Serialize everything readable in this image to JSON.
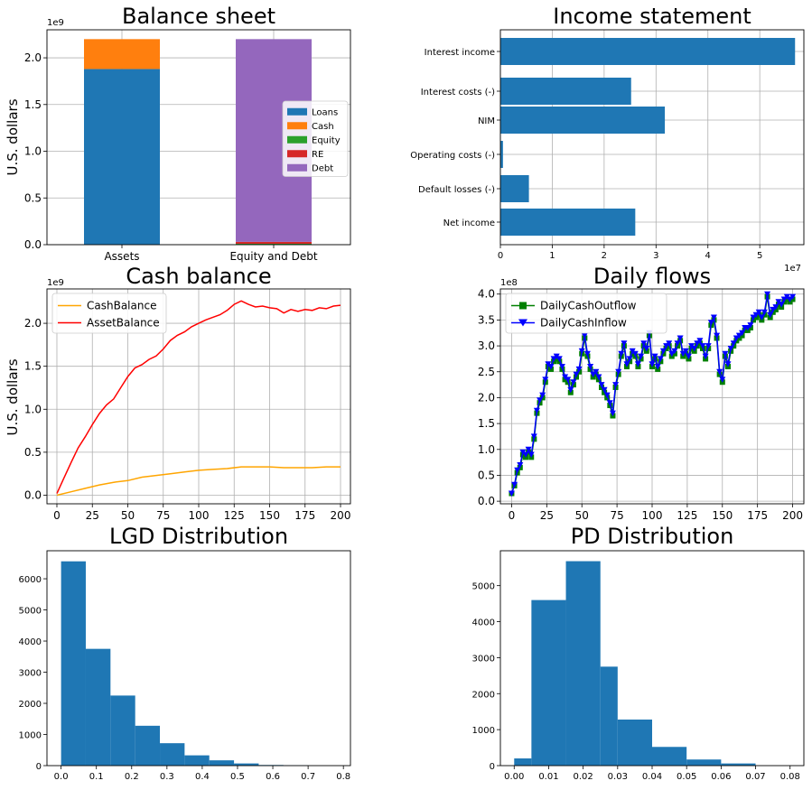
{
  "colors": {
    "blue": "#1f77b4",
    "orange": "#ff7f0e",
    "green": "#2ca02c",
    "red": "#d62728",
    "purple": "#9467bd",
    "cash_line": "#ffa500",
    "asset_line": "#ff0000",
    "outflow": "#008000",
    "inflow": "#0000ff"
  },
  "chart_data": [
    {
      "id": "balance",
      "type": "bar",
      "title": "Balance sheet",
      "ylabel": "U.S. dollars",
      "offset_text": "1e9",
      "ylim": [
        0,
        2.3
      ],
      "yticks": [
        "0.0",
        "0.5",
        "1.0",
        "1.5",
        "2.0"
      ],
      "categories": [
        "Assets",
        "Equity and Debt"
      ],
      "series": [
        {
          "name": "Loans",
          "color": "#1f77b4",
          "values": [
            1.88,
            0
          ]
        },
        {
          "name": "Cash",
          "color": "#ff7f0e",
          "values": [
            0.32,
            0
          ]
        },
        {
          "name": "Equity",
          "color": "#2ca02c",
          "values": [
            0,
            0.01
          ]
        },
        {
          "name": "RE",
          "color": "#d62728",
          "values": [
            0,
            0.02
          ]
        },
        {
          "name": "Debt",
          "color": "#9467bd",
          "values": [
            0,
            2.17
          ]
        }
      ],
      "legend": "center-right",
      "grid": true
    },
    {
      "id": "income",
      "type": "bar",
      "orientation": "horizontal",
      "title": "Income statement",
      "offset_text": "1e7",
      "xlim": [
        0,
        5.85
      ],
      "xticks": [
        "0",
        "1",
        "2",
        "3",
        "4",
        "5"
      ],
      "categories": [
        "Interest income",
        "Interest costs (-)",
        "NIM",
        "Operating costs (-)",
        "Default losses (-)",
        "Net income"
      ],
      "values": [
        5.68,
        2.52,
        3.17,
        0.05,
        0.55,
        2.6
      ],
      "grid": true
    },
    {
      "id": "cash",
      "type": "line",
      "title": "Cash balance",
      "ylabel": "U.S. dollars",
      "offset_text": "1e9",
      "xlim": [
        -7,
        207
      ],
      "ylim": [
        -0.1,
        2.4
      ],
      "xticks": [
        "0",
        "25",
        "50",
        "75",
        "100",
        "125",
        "150",
        "175",
        "200"
      ],
      "yticks": [
        "0.0",
        "0.5",
        "1.0",
        "1.5",
        "2.0"
      ],
      "series": [
        {
          "name": "CashBalance",
          "color": "#ffa500",
          "x": [
            0,
            10,
            20,
            30,
            40,
            50,
            60,
            70,
            80,
            90,
            100,
            110,
            120,
            130,
            140,
            150,
            160,
            170,
            180,
            190,
            200
          ],
          "y": [
            0.0,
            0.04,
            0.08,
            0.12,
            0.15,
            0.17,
            0.21,
            0.23,
            0.25,
            0.27,
            0.29,
            0.3,
            0.31,
            0.33,
            0.33,
            0.33,
            0.32,
            0.32,
            0.32,
            0.33,
            0.33
          ]
        },
        {
          "name": "AssetBalance",
          "color": "#ff0000",
          "x": [
            0,
            5,
            10,
            15,
            20,
            25,
            30,
            35,
            40,
            45,
            50,
            55,
            60,
            65,
            70,
            75,
            80,
            85,
            90,
            95,
            100,
            105,
            110,
            115,
            120,
            125,
            130,
            135,
            140,
            145,
            150,
            155,
            160,
            165,
            170,
            175,
            180,
            185,
            190,
            195,
            200
          ],
          "y": [
            0.02,
            0.2,
            0.38,
            0.55,
            0.68,
            0.82,
            0.95,
            1.05,
            1.12,
            1.25,
            1.38,
            1.48,
            1.52,
            1.58,
            1.62,
            1.7,
            1.8,
            1.86,
            1.9,
            1.96,
            2.0,
            2.04,
            2.07,
            2.1,
            2.15,
            2.22,
            2.26,
            2.22,
            2.19,
            2.2,
            2.18,
            2.17,
            2.12,
            2.16,
            2.14,
            2.16,
            2.15,
            2.18,
            2.17,
            2.2,
            2.21
          ]
        }
      ],
      "legend": "upper-left",
      "grid": true
    },
    {
      "id": "flows",
      "type": "line",
      "title": "Daily flows",
      "offset_text": "1e8",
      "xlim": [
        -8,
        208
      ],
      "ylim": [
        -0.05,
        4.1
      ],
      "xticks": [
        "0",
        "25",
        "50",
        "75",
        "100",
        "125",
        "150",
        "175",
        "200"
      ],
      "yticks": [
        "0.0",
        "0.5",
        "1.0",
        "1.5",
        "2.0",
        "2.5",
        "3.0",
        "3.5",
        "4.0"
      ],
      "x": [
        0,
        2,
        4,
        6,
        8,
        10,
        12,
        14,
        16,
        18,
        20,
        22,
        24,
        26,
        28,
        30,
        32,
        34,
        36,
        38,
        40,
        42,
        44,
        46,
        48,
        50,
        52,
        54,
        56,
        58,
        60,
        62,
        64,
        66,
        68,
        70,
        72,
        74,
        76,
        78,
        80,
        82,
        84,
        86,
        88,
        90,
        92,
        94,
        96,
        98,
        100,
        102,
        104,
        106,
        108,
        110,
        112,
        114,
        116,
        118,
        120,
        122,
        124,
        126,
        128,
        130,
        132,
        134,
        136,
        138,
        140,
        142,
        144,
        146,
        148,
        150,
        152,
        154,
        156,
        158,
        160,
        162,
        164,
        166,
        168,
        170,
        172,
        174,
        176,
        178,
        180,
        182,
        184,
        186,
        188,
        190,
        192,
        194,
        196,
        198,
        200
      ],
      "series": [
        {
          "name": "DailyCashOutflow",
          "color": "#008000",
          "marker": "square",
          "y": [
            0.15,
            0.3,
            0.55,
            0.65,
            0.9,
            0.85,
            0.95,
            0.85,
            1.2,
            1.7,
            1.9,
            2.0,
            2.3,
            2.6,
            2.55,
            2.7,
            2.75,
            2.7,
            2.55,
            2.35,
            2.3,
            2.1,
            2.25,
            2.4,
            2.5,
            2.85,
            3.15,
            2.8,
            2.55,
            2.4,
            2.45,
            2.35,
            2.2,
            2.1,
            2.0,
            1.85,
            1.65,
            2.2,
            2.45,
            2.8,
            3.0,
            2.6,
            2.7,
            2.85,
            2.8,
            2.6,
            2.75,
            3.0,
            2.9,
            3.2,
            2.6,
            2.75,
            2.55,
            2.7,
            2.85,
            2.95,
            3.0,
            2.8,
            2.85,
            3.0,
            3.1,
            2.8,
            2.85,
            2.75,
            2.95,
            2.9,
            3.0,
            3.05,
            2.95,
            2.75,
            2.95,
            3.4,
            3.5,
            3.15,
            2.45,
            2.3,
            2.8,
            2.6,
            2.9,
            3.0,
            3.1,
            3.15,
            3.2,
            3.3,
            3.3,
            3.35,
            3.5,
            3.55,
            3.6,
            3.5,
            3.6,
            3.95,
            3.55,
            3.65,
            3.7,
            3.8,
            3.75,
            3.85,
            3.9,
            3.85,
            3.9
          ]
        },
        {
          "name": "DailyCashInflow",
          "color": "#0000ff",
          "marker": "triangle-down",
          "y": [
            0.15,
            0.32,
            0.6,
            0.7,
            0.95,
            0.9,
            1.0,
            0.9,
            1.25,
            1.75,
            1.95,
            2.05,
            2.35,
            2.65,
            2.6,
            2.75,
            2.8,
            2.75,
            2.6,
            2.4,
            2.35,
            2.15,
            2.3,
            2.45,
            2.55,
            2.9,
            3.2,
            2.85,
            2.6,
            2.45,
            2.5,
            2.4,
            2.25,
            2.15,
            2.05,
            1.9,
            1.7,
            2.25,
            2.5,
            2.85,
            3.05,
            2.65,
            2.75,
            2.9,
            2.85,
            2.65,
            2.8,
            3.05,
            2.95,
            3.25,
            2.65,
            2.8,
            2.6,
            2.75,
            2.9,
            3.0,
            3.05,
            2.85,
            2.9,
            3.05,
            3.15,
            2.85,
            2.9,
            2.8,
            3.0,
            2.95,
            3.05,
            3.1,
            3.0,
            2.8,
            3.0,
            3.45,
            3.55,
            3.2,
            2.5,
            2.35,
            2.85,
            2.65,
            2.95,
            3.05,
            3.15,
            3.2,
            3.25,
            3.35,
            3.35,
            3.4,
            3.55,
            3.6,
            3.65,
            3.55,
            3.65,
            4.0,
            3.6,
            3.7,
            3.75,
            3.85,
            3.8,
            3.9,
            3.95,
            3.9,
            3.95
          ]
        }
      ],
      "legend": "upper-left",
      "grid": true
    },
    {
      "id": "lgd",
      "type": "bar",
      "subtype": "histogram",
      "title": "LGD Distribution",
      "xlim": [
        -0.04,
        0.82
      ],
      "ylim": [
        0,
        6900
      ],
      "xticks": [
        "0.0",
        "0.1",
        "0.2",
        "0.3",
        "0.4",
        "0.5",
        "0.6",
        "0.7",
        "0.8"
      ],
      "yticks": [
        "0",
        "1000",
        "2000",
        "3000",
        "4000",
        "5000",
        "6000"
      ],
      "bin_edges": [
        0.0,
        0.07,
        0.14,
        0.21,
        0.28,
        0.35,
        0.42,
        0.49,
        0.56,
        0.63,
        0.7
      ],
      "values": [
        6560,
        3750,
        2250,
        1280,
        720,
        330,
        170,
        70,
        20,
        10
      ],
      "grid": false
    },
    {
      "id": "pd",
      "type": "bar",
      "subtype": "histogram",
      "title": "PD Distribution",
      "xlim": [
        -0.004,
        0.084
      ],
      "ylim": [
        0,
        5970
      ],
      "xticks": [
        "0.00",
        "0.01",
        "0.02",
        "0.03",
        "0.04",
        "0.05",
        "0.06",
        "0.07",
        "0.08"
      ],
      "yticks": [
        "0",
        "1000",
        "2000",
        "3000",
        "4000",
        "5000"
      ],
      "bin_edges": [
        0.0,
        0.005,
        0.015,
        0.025,
        0.03,
        0.04,
        0.05,
        0.06,
        0.07,
        0.08
      ],
      "values": [
        200,
        4600,
        5680,
        2750,
        1280,
        520,
        170,
        60,
        0
      ],
      "grid": false
    }
  ]
}
